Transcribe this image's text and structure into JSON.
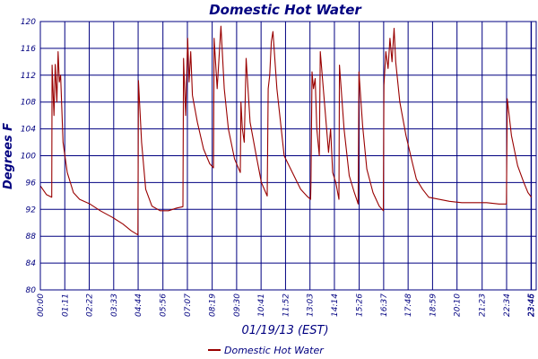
{
  "chart_data": {
    "type": "line",
    "title": "Domestic Hot Water",
    "xlabel": "01/19/13 (EST)",
    "ylabel": "Degrees F",
    "ylim": [
      80,
      120
    ],
    "y_ticks": [
      80,
      84,
      88,
      92,
      96,
      100,
      104,
      108,
      112,
      116,
      120
    ],
    "x_unit": "hours",
    "xlim": [
      0,
      24
    ],
    "x_ticks": [
      {
        "label": "00:00",
        "x": 0.0
      },
      {
        "label": "01:11",
        "x": 1.183
      },
      {
        "label": "02:22",
        "x": 2.367
      },
      {
        "label": "03:33",
        "x": 3.55
      },
      {
        "label": "04:44",
        "x": 4.733
      },
      {
        "label": "05:56",
        "x": 5.933
      },
      {
        "label": "07:07",
        "x": 7.117
      },
      {
        "label": "08:19",
        "x": 8.317
      },
      {
        "label": "09:30",
        "x": 9.5
      },
      {
        "label": "10:41",
        "x": 10.683
      },
      {
        "label": "11:52",
        "x": 11.867
      },
      {
        "label": "13:03",
        "x": 13.05
      },
      {
        "label": "14:14",
        "x": 14.233
      },
      {
        "label": "15:26",
        "x": 15.433
      },
      {
        "label": "16:37",
        "x": 16.617
      },
      {
        "label": "17:48",
        "x": 17.8
      },
      {
        "label": "18:59",
        "x": 18.983
      },
      {
        "label": "20:10",
        "x": 20.167
      },
      {
        "label": "21:23",
        "x": 21.383
      },
      {
        "label": "22:34",
        "x": 22.567
      },
      {
        "label": "23:45",
        "x": 23.75
      },
      {
        "label": "23:46",
        "x": 23.767
      }
    ],
    "grid": true,
    "legend_position": "bottom-center",
    "series": [
      {
        "name": "Domestic Hot Water",
        "color": "#990000",
        "points": [
          [
            0.0,
            95.5
          ],
          [
            0.3,
            94.2
          ],
          [
            0.55,
            93.8
          ],
          [
            0.57,
            113.5
          ],
          [
            0.66,
            106
          ],
          [
            0.72,
            113.6
          ],
          [
            0.8,
            108
          ],
          [
            0.86,
            115.5
          ],
          [
            0.92,
            111
          ],
          [
            0.98,
            112
          ],
          [
            1.1,
            102
          ],
          [
            1.3,
            97.5
          ],
          [
            1.6,
            94.5
          ],
          [
            1.9,
            93.5
          ],
          [
            2.4,
            92.8
          ],
          [
            2.9,
            91.8
          ],
          [
            3.5,
            90.8
          ],
          [
            4.0,
            89.8
          ],
          [
            4.4,
            88.8
          ],
          [
            4.72,
            88.2
          ],
          [
            4.75,
            111.2
          ],
          [
            4.9,
            102
          ],
          [
            5.1,
            95
          ],
          [
            5.4,
            92.5
          ],
          [
            5.8,
            91.8
          ],
          [
            6.2,
            91.8
          ],
          [
            6.6,
            92.2
          ],
          [
            6.9,
            92.4
          ],
          [
            6.93,
            114.5
          ],
          [
            7.03,
            106
          ],
          [
            7.13,
            117.5
          ],
          [
            7.2,
            111
          ],
          [
            7.28,
            115.5
          ],
          [
            7.36,
            109
          ],
          [
            7.6,
            105
          ],
          [
            7.9,
            101
          ],
          [
            8.2,
            98.8
          ],
          [
            8.38,
            98.2
          ],
          [
            8.41,
            117.5
          ],
          [
            8.56,
            110
          ],
          [
            8.74,
            119.3
          ],
          [
            8.9,
            110
          ],
          [
            9.1,
            104
          ],
          [
            9.4,
            99.5
          ],
          [
            9.68,
            97.5
          ],
          [
            9.71,
            108
          ],
          [
            9.78,
            104
          ],
          [
            9.87,
            102
          ],
          [
            9.96,
            114.5
          ],
          [
            10.15,
            105
          ],
          [
            10.45,
            100
          ],
          [
            10.7,
            96
          ],
          [
            10.98,
            94
          ],
          [
            11.03,
            110
          ],
          [
            11.1,
            112
          ],
          [
            11.18,
            117
          ],
          [
            11.26,
            118.5
          ],
          [
            11.45,
            110
          ],
          [
            11.8,
            100
          ],
          [
            12.2,
            97.5
          ],
          [
            12.6,
            95
          ],
          [
            12.9,
            94
          ],
          [
            13.08,
            93.5
          ],
          [
            13.1,
            96
          ],
          [
            13.15,
            112.5
          ],
          [
            13.22,
            110
          ],
          [
            13.3,
            111.5
          ],
          [
            13.38,
            104
          ],
          [
            13.5,
            100
          ],
          [
            13.55,
            115.5
          ],
          [
            13.75,
            108
          ],
          [
            13.95,
            100.5
          ],
          [
            14.05,
            104
          ],
          [
            14.15,
            97.5
          ],
          [
            14.3,
            96
          ],
          [
            14.45,
            93.5
          ],
          [
            14.48,
            113.5
          ],
          [
            14.7,
            104
          ],
          [
            14.95,
            97
          ],
          [
            15.2,
            94.5
          ],
          [
            15.34,
            93.2
          ],
          [
            15.38,
            92.8
          ],
          [
            15.42,
            112.5
          ],
          [
            15.6,
            104.5
          ],
          [
            15.8,
            98
          ],
          [
            16.1,
            94.5
          ],
          [
            16.4,
            92.5
          ],
          [
            16.6,
            91.8
          ],
          [
            16.63,
            110.5
          ],
          [
            16.72,
            115.5
          ],
          [
            16.83,
            113
          ],
          [
            16.92,
            117.5
          ],
          [
            17.02,
            114
          ],
          [
            17.12,
            119
          ],
          [
            17.2,
            114
          ],
          [
            17.4,
            108
          ],
          [
            17.7,
            103
          ],
          [
            18.0,
            99
          ],
          [
            18.2,
            96.5
          ],
          [
            18.5,
            95
          ],
          [
            18.8,
            93.8
          ],
          [
            19.3,
            93.5
          ],
          [
            19.8,
            93.2
          ],
          [
            20.4,
            93
          ],
          [
            21.0,
            93
          ],
          [
            21.6,
            93
          ],
          [
            22.2,
            92.8
          ],
          [
            22.56,
            92.8
          ],
          [
            22.6,
            108.5
          ],
          [
            22.8,
            103
          ],
          [
            23.1,
            98.5
          ],
          [
            23.4,
            96
          ],
          [
            23.6,
            94.5
          ],
          [
            23.77,
            93.8
          ]
        ]
      }
    ]
  }
}
